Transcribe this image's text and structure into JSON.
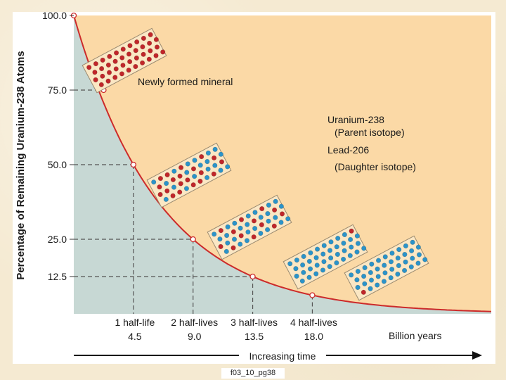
{
  "caption": "f03_10_pg38",
  "chart_data": {
    "type": "line",
    "ylabel": "Percentage of Remaining Uranium-238 Atoms",
    "yticks": [
      "100.0",
      "75.0",
      "50.0",
      "25.0",
      "12.5"
    ],
    "ytick_values": [
      100,
      75,
      50,
      25,
      12.5
    ],
    "ylim": [
      0,
      100
    ],
    "xlim": [
      0,
      31.5
    ],
    "x_ticks": [
      {
        "x": 4.5,
        "label": "1 half-life",
        "value_label": "4.5"
      },
      {
        "x": 9.0,
        "label": "2 half-lives",
        "value_label": "9.0"
      },
      {
        "x": 13.5,
        "label": "3 half-lives",
        "value_label": "13.5"
      },
      {
        "x": 18.0,
        "label": "4 half-lives",
        "value_label": "18.0"
      }
    ],
    "x_unit": "Billion years",
    "xlabel": "Increasing time",
    "series": [
      {
        "name": "Uranium-238",
        "half_life": 4.5,
        "x": [
          0,
          2.25,
          4.5,
          9.0,
          13.5,
          18.0
        ],
        "values": [
          100,
          75,
          50,
          25,
          12.5,
          6.25
        ]
      }
    ],
    "annotations": {
      "newly_formed": "Newly formed mineral",
      "uranium_line1": "Uranium-238",
      "uranium_line2": "(Parent isotope)",
      "lead_line1": "Lead-206",
      "lead_line2": "(Daughter isotope)"
    },
    "colors": {
      "chart_bg": "#fbd9a6",
      "area": "#c7d8d4",
      "curve": "#cc2a2a",
      "uranium_dot": "#c0262a",
      "lead_dot": "#2b93c9",
      "crystal_fill": "#fbe7c4"
    }
  }
}
